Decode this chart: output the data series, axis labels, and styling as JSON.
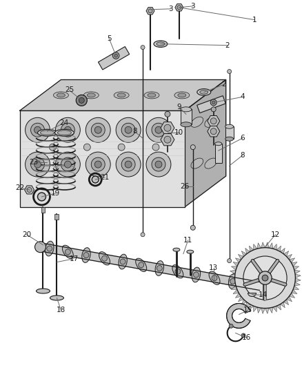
{
  "background_color": "#ffffff",
  "fig_width": 4.38,
  "fig_height": 5.33,
  "dpi": 100,
  "label_fontsize": 7.5,
  "parts_color": "#d0d0d0",
  "dark": "#1a1a1a",
  "mid": "#888888",
  "light": "#eeeeee"
}
